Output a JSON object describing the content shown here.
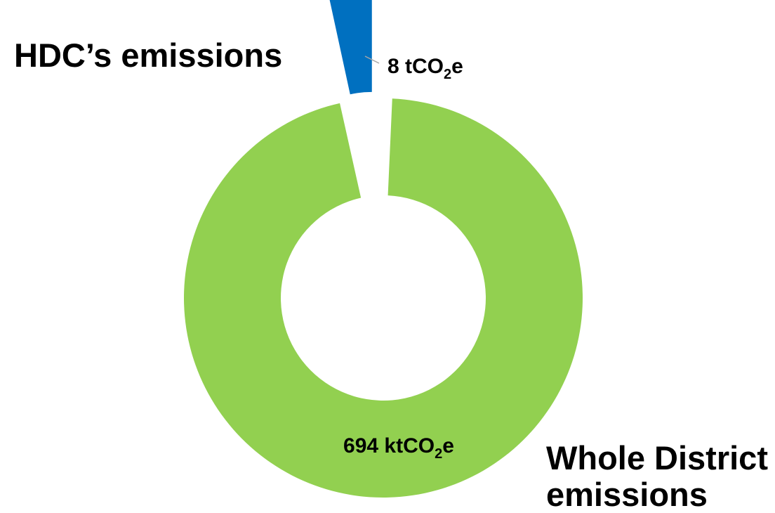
{
  "chart_data": {
    "type": "pie",
    "style": "donut",
    "slices": [
      {
        "name": "Whole District emissions",
        "value": 694,
        "unit": "ktCO2e",
        "label_number": "694 kt",
        "label_co": "CO",
        "label_sub": "2",
        "label_e": "e",
        "color": "#92d050",
        "exploded": false
      },
      {
        "name": "HDC's emissions",
        "value": 8,
        "unit": "tCO2e",
        "label_number": "8 t",
        "label_co": "CO",
        "label_sub": "2",
        "label_e": "e",
        "color": "#0070c0",
        "exploded": true
      }
    ],
    "category_labels": {
      "hdc": "HDC’s emissions",
      "district_line1": "Whole District",
      "district_line2": "emissions"
    },
    "leader_line_color": "#a6a6a6"
  }
}
